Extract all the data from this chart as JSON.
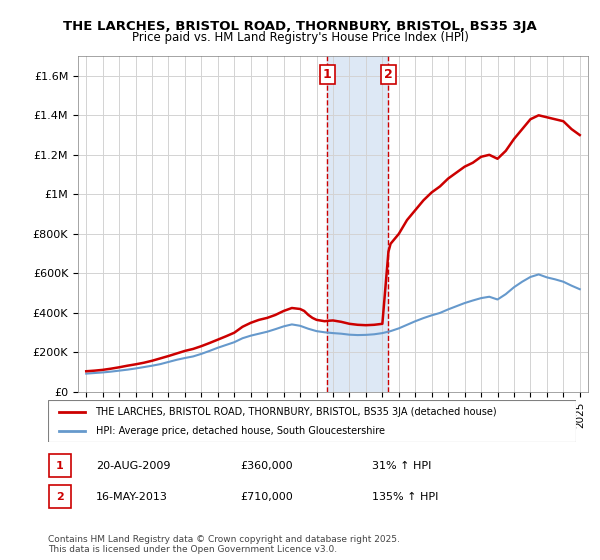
{
  "title": "THE LARCHES, BRISTOL ROAD, THORNBURY, BRISTOL, BS35 3JA",
  "subtitle": "Price paid vs. HM Land Registry's House Price Index (HPI)",
  "legend_line1": "THE LARCHES, BRISTOL ROAD, THORNBURY, BRISTOL, BS35 3JA (detached house)",
  "legend_line2": "HPI: Average price, detached house, South Gloucestershire",
  "transaction1_date": "20-AUG-2009",
  "transaction1_price": "£360,000",
  "transaction1_hpi": "31% ↑ HPI",
  "transaction1_label": "1",
  "transaction2_date": "16-MAY-2013",
  "transaction2_price": "£710,000",
  "transaction2_hpi": "135% ↑ HPI",
  "transaction2_label": "2",
  "copyright": "Contains HM Land Registry data © Crown copyright and database right 2025.\nThis data is licensed under the Open Government Licence v3.0.",
  "house_color": "#cc0000",
  "hpi_color": "#6699cc",
  "shading_color": "#dde8f5",
  "vline_color": "#cc0000",
  "background_color": "#ffffff",
  "ylim_max": 1700000,
  "transaction1_x": 2009.64,
  "transaction2_x": 2013.37,
  "house_years": [
    1995,
    1995.5,
    1996,
    1996.5,
    1997,
    1997.5,
    1998,
    1998.5,
    1999,
    1999.5,
    2000,
    2000.5,
    2001,
    2001.5,
    2002,
    2002.5,
    2003,
    2003.5,
    2004,
    2004.5,
    2005,
    2005.5,
    2006,
    2006.5,
    2007,
    2007.5,
    2008,
    2008.25,
    2008.5,
    2008.75,
    2009.0,
    2009.5,
    2009.64,
    2010.0,
    2010.5,
    2011.0,
    2011.5,
    2012.0,
    2012.5,
    2013.0,
    2013.37,
    2013.5,
    2014.0,
    2014.5,
    2015.0,
    2015.5,
    2016.0,
    2016.5,
    2017.0,
    2017.5,
    2018.0,
    2018.5,
    2019.0,
    2019.5,
    2020.0,
    2020.5,
    2021.0,
    2021.5,
    2022.0,
    2022.5,
    2023.0,
    2023.5,
    2024.0,
    2024.5,
    2025.0
  ],
  "house_prices": [
    105000,
    108000,
    112000,
    118000,
    125000,
    133000,
    140000,
    148000,
    158000,
    170000,
    182000,
    195000,
    208000,
    218000,
    232000,
    248000,
    265000,
    282000,
    300000,
    330000,
    350000,
    365000,
    375000,
    390000,
    410000,
    425000,
    420000,
    410000,
    390000,
    375000,
    365000,
    358000,
    360000,
    362000,
    355000,
    345000,
    340000,
    338000,
    340000,
    345000,
    710000,
    750000,
    800000,
    870000,
    920000,
    970000,
    1010000,
    1040000,
    1080000,
    1110000,
    1140000,
    1160000,
    1190000,
    1200000,
    1180000,
    1220000,
    1280000,
    1330000,
    1380000,
    1400000,
    1390000,
    1380000,
    1370000,
    1330000,
    1300000
  ],
  "hpi_years": [
    1995,
    1995.5,
    1996,
    1996.5,
    1997,
    1997.5,
    1998,
    1998.5,
    1999,
    1999.5,
    2000,
    2000.5,
    2001,
    2001.5,
    2002,
    2002.5,
    2003,
    2003.5,
    2004,
    2004.5,
    2005,
    2005.5,
    2006,
    2006.5,
    2007,
    2007.5,
    2008,
    2008.5,
    2009.0,
    2009.5,
    2010.0,
    2010.5,
    2011.0,
    2011.5,
    2012.0,
    2012.5,
    2013.0,
    2013.5,
    2014.0,
    2014.5,
    2015.0,
    2015.5,
    2016.0,
    2016.5,
    2017.0,
    2017.5,
    2018.0,
    2018.5,
    2019.0,
    2019.5,
    2020.0,
    2020.5,
    2021.0,
    2021.5,
    2022.0,
    2022.5,
    2023.0,
    2023.5,
    2024.0,
    2024.5,
    2025.0
  ],
  "hpi_prices": [
    93000,
    96000,
    99000,
    103000,
    108000,
    113000,
    119000,
    126000,
    133000,
    141000,
    152000,
    163000,
    172000,
    180000,
    193000,
    208000,
    224000,
    238000,
    252000,
    272000,
    285000,
    295000,
    305000,
    318000,
    332000,
    342000,
    335000,
    320000,
    308000,
    302000,
    298000,
    295000,
    290000,
    288000,
    289000,
    292000,
    298000,
    308000,
    322000,
    340000,
    358000,
    374000,
    388000,
    400000,
    418000,
    434000,
    450000,
    463000,
    475000,
    482000,
    468000,
    495000,
    530000,
    558000,
    582000,
    595000,
    580000,
    570000,
    558000,
    538000,
    520000
  ]
}
